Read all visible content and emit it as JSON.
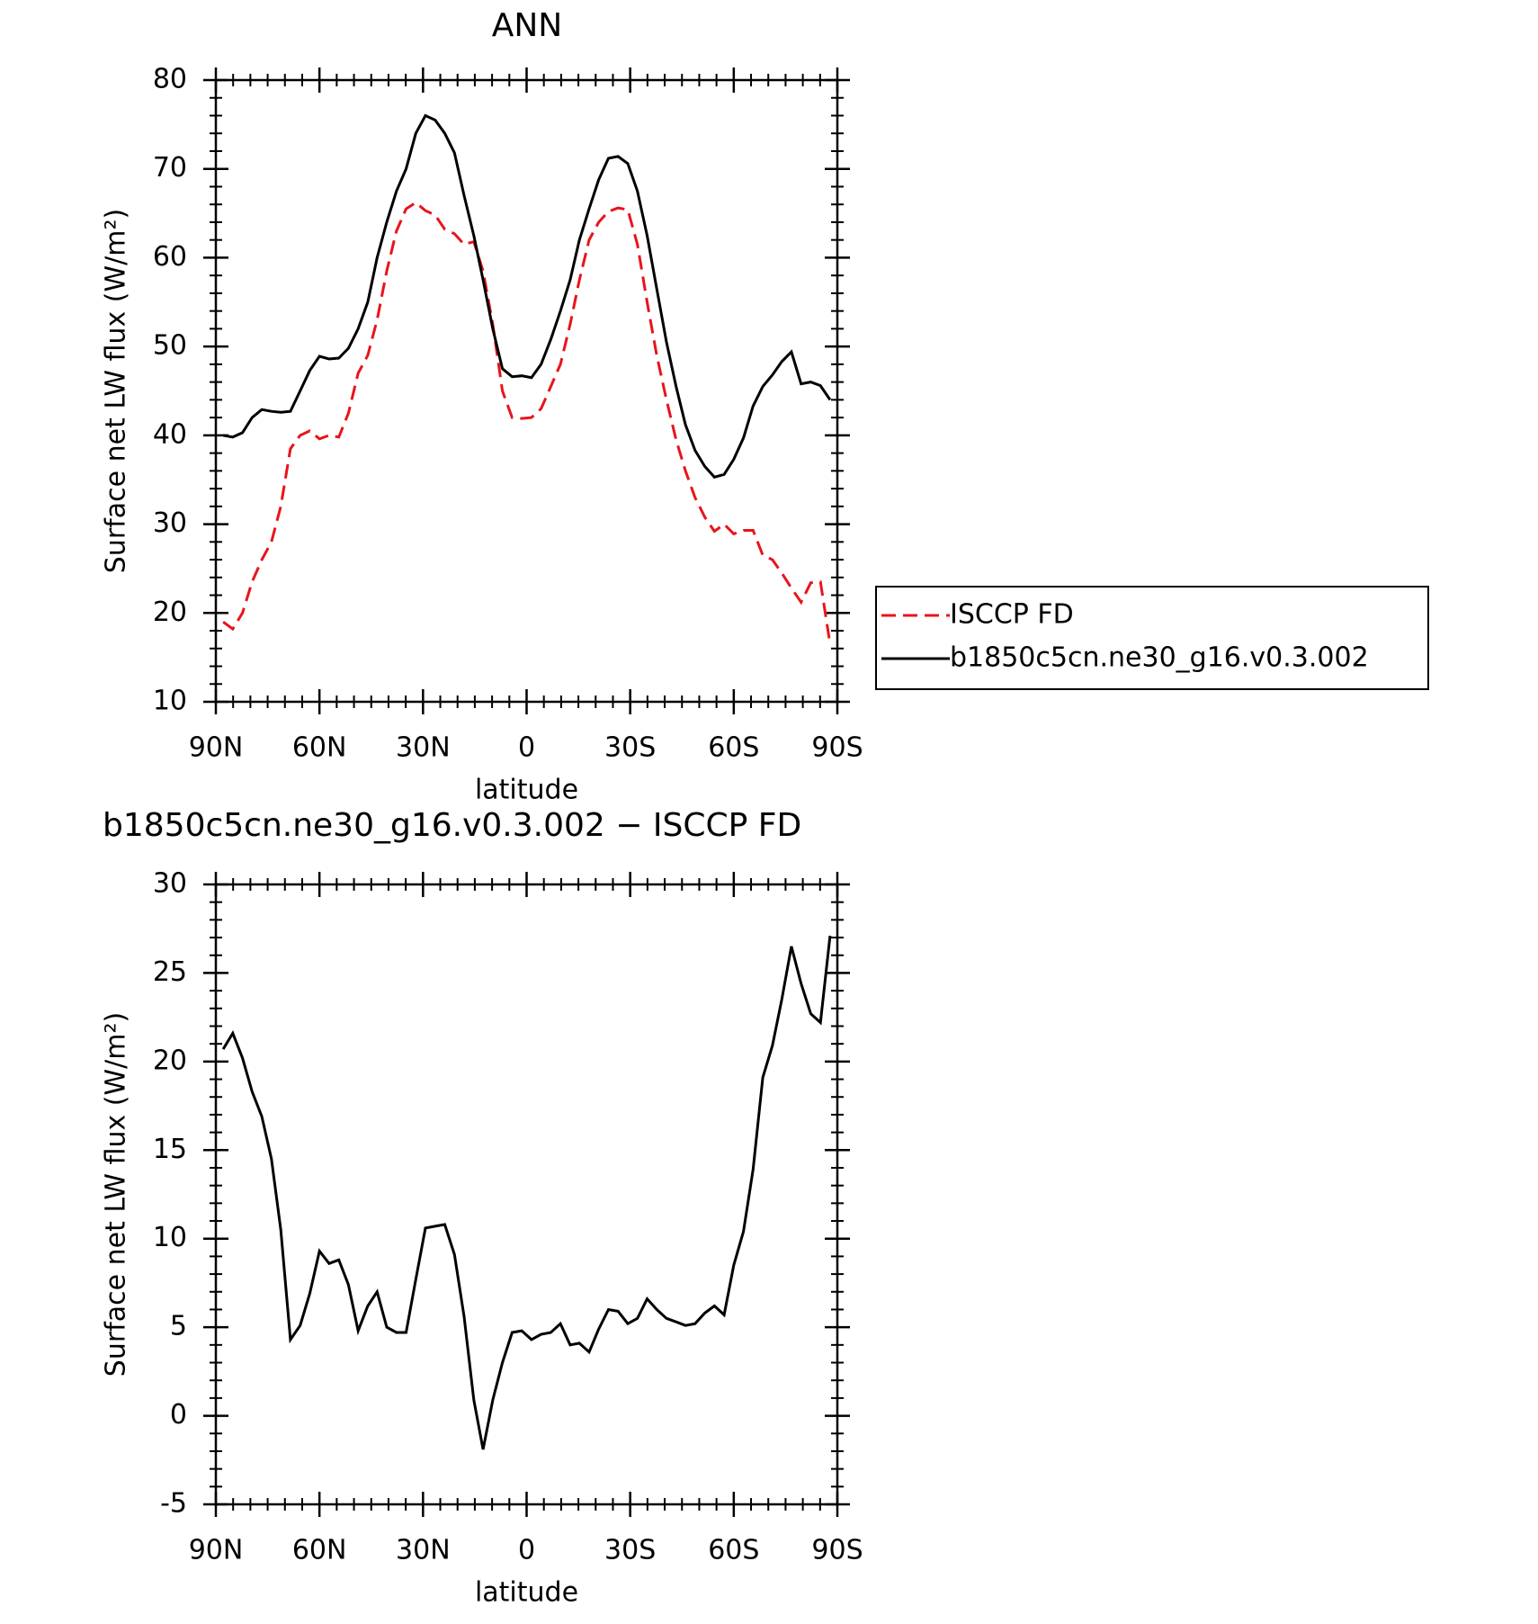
{
  "chart_data": [
    {
      "type": "line",
      "title": "ANN",
      "xlabel": "latitude",
      "ylabel": "Surface net LW flux (W/m²)",
      "x": [
        87.9,
        85.1,
        82.3,
        79.5,
        76.7,
        73.9,
        71.2,
        68.4,
        65.6,
        62.8,
        60.0,
        57.2,
        54.4,
        51.6,
        48.8,
        46.0,
        43.3,
        40.5,
        37.7,
        34.9,
        32.1,
        29.3,
        26.5,
        23.7,
        20.9,
        18.1,
        15.3,
        12.6,
        9.8,
        7.0,
        4.2,
        1.4,
        -1.4,
        -4.2,
        -7.0,
        -9.8,
        -12.6,
        -15.3,
        -18.1,
        -20.9,
        -23.7,
        -26.5,
        -29.3,
        -32.1,
        -34.9,
        -37.7,
        -40.5,
        -43.3,
        -46.0,
        -48.8,
        -51.6,
        -54.4,
        -57.2,
        -60.0,
        -62.8,
        -65.6,
        -68.4,
        -71.2,
        -73.9,
        -76.7,
        -79.5,
        -82.3,
        -85.1,
        -87.9
      ],
      "series": [
        {
          "name": "ISCCP FD",
          "color": "#e8141c",
          "dashed": true,
          "values": [
            19.0,
            18.2,
            20.0,
            23.5,
            26.0,
            28.0,
            32.0,
            38.5,
            40.0,
            40.5,
            39.6,
            40.0,
            39.8,
            42.5,
            47.0,
            49.0,
            53.0,
            58.5,
            63.0,
            65.5,
            66.2,
            65.3,
            64.8,
            63.2,
            62.7,
            61.5,
            61.8,
            58.5,
            52.5,
            45.0,
            42.0,
            41.9,
            42.0,
            43.0,
            45.5,
            48.0,
            52.5,
            57.5,
            62.0,
            64.0,
            65.2,
            65.6,
            65.4,
            61.5,
            55.0,
            49.0,
            44.0,
            39.5,
            36.0,
            33.0,
            30.8,
            29.2,
            30.0,
            28.9,
            29.3,
            29.3,
            26.5,
            26.0,
            24.5,
            22.8,
            21.2,
            23.4,
            23.5,
            16.5
          ]
        },
        {
          "name": "b1850c5cn.ne30_g16.v0.3.002",
          "color": "#000000",
          "dashed": false,
          "values": [
            40.0,
            39.8,
            40.3,
            42.0,
            42.9,
            42.7,
            42.6,
            42.7,
            45.0,
            47.3,
            48.9,
            48.6,
            48.7,
            49.8,
            52.0,
            55.0,
            60.0,
            64.0,
            67.5,
            70.0,
            74.0,
            76.0,
            75.5,
            74.0,
            71.8,
            67.0,
            62.5,
            57.5,
            52.0,
            47.5,
            46.6,
            46.7,
            46.5,
            48.0,
            50.8,
            54.0,
            57.5,
            62.0,
            65.5,
            68.8,
            71.2,
            71.4,
            70.6,
            67.5,
            62.5,
            56.5,
            50.5,
            45.5,
            41.2,
            38.3,
            36.5,
            35.3,
            35.6,
            37.3,
            39.7,
            43.3,
            45.5,
            46.8,
            48.3,
            49.4,
            45.8,
            46.0,
            45.6,
            44.0
          ]
        }
      ],
      "xlim": [
        90,
        -90
      ],
      "xticks": [
        {
          "value": 90,
          "label": "90N"
        },
        {
          "value": 60,
          "label": "60N"
        },
        {
          "value": 30,
          "label": "30N"
        },
        0,
        {
          "value": -30,
          "label": "30S"
        },
        {
          "value": -60,
          "label": "60S"
        },
        {
          "value": -90,
          "label": "90S"
        }
      ],
      "ylim": [
        10,
        80
      ],
      "yticks": [
        10,
        20,
        30,
        40,
        50,
        60,
        70,
        80
      ],
      "legend": "right"
    },
    {
      "type": "line",
      "title": "b1850c5cn.ne30_g16.v0.3.002 − ISCCP FD",
      "xlabel": "latitude",
      "ylabel": "Surface net LW flux (W/m²)",
      "x": [
        87.9,
        85.1,
        82.3,
        79.5,
        76.7,
        73.9,
        71.2,
        68.4,
        65.6,
        62.8,
        60.0,
        57.2,
        54.4,
        51.6,
        48.8,
        46.0,
        43.3,
        40.5,
        37.7,
        34.9,
        32.1,
        29.3,
        26.5,
        23.7,
        20.9,
        18.1,
        15.3,
        12.6,
        9.8,
        7.0,
        4.2,
        1.4,
        -1.4,
        -4.2,
        -7.0,
        -9.8,
        -12.6,
        -15.3,
        -18.1,
        -20.9,
        -23.7,
        -26.5,
        -29.3,
        -32.1,
        -34.9,
        -37.7,
        -40.5,
        -43.3,
        -46.0,
        -48.8,
        -51.6,
        -54.4,
        -57.2,
        -60.0,
        -62.8,
        -65.6,
        -68.4,
        -71.2,
        -73.9,
        -76.7,
        -79.5,
        -82.3,
        -85.1,
        -87.9
      ],
      "color": "#000000",
      "values": [
        20.7,
        21.6,
        20.2,
        18.3,
        16.9,
        14.5,
        10.5,
        4.3,
        5.1,
        6.9,
        9.3,
        8.6,
        8.8,
        7.4,
        4.8,
        6.2,
        7.0,
        5.0,
        4.7,
        4.7,
        7.7,
        10.6,
        10.7,
        10.8,
        9.1,
        5.6,
        0.9,
        -1.9,
        0.9,
        3.0,
        4.7,
        4.8,
        4.3,
        4.6,
        4.7,
        5.2,
        4.0,
        4.1,
        3.6,
        4.9,
        6.0,
        5.9,
        5.2,
        5.5,
        6.6,
        6.0,
        5.5,
        5.3,
        5.1,
        5.2,
        5.8,
        6.2,
        5.7,
        8.5,
        10.4,
        13.9,
        19.1,
        20.9,
        23.5,
        26.5,
        24.4,
        22.7,
        22.2,
        27.1
      ],
      "xlim": [
        90,
        -90
      ],
      "xticks": [
        {
          "value": 90,
          "label": "90N"
        },
        {
          "value": 60,
          "label": "60N"
        },
        {
          "value": 30,
          "label": "30N"
        },
        0,
        {
          "value": -30,
          "label": "30S"
        },
        {
          "value": -60,
          "label": "60S"
        },
        {
          "value": -90,
          "label": "90S"
        }
      ],
      "ylim": [
        -5,
        30
      ],
      "yticks": [
        -5,
        0,
        5,
        10,
        15,
        20,
        25,
        30
      ]
    }
  ]
}
